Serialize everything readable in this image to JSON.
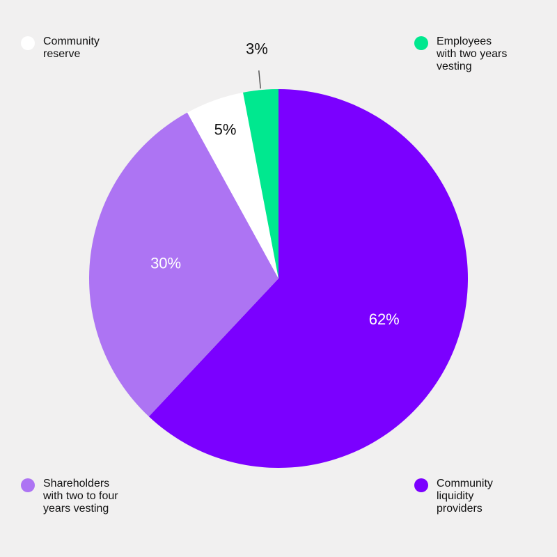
{
  "chart_data": {
    "type": "pie",
    "start_angle_deg": 0,
    "direction": "clockwise",
    "slices": [
      {
        "label": "Community liquidity providers",
        "value": 62,
        "value_label": "62%",
        "color": "#7b00ff",
        "label_color": "#ffffff"
      },
      {
        "label": "Shareholders with two to four years vesting",
        "value": 30,
        "value_label": "30%",
        "color": "#ad74f3",
        "label_color": "#ffffff"
      },
      {
        "label": "Community reserve",
        "value": 5,
        "value_label": "5%",
        "color": "#ffffff",
        "label_color": "#111111"
      },
      {
        "label": "Employees with two years vesting",
        "value": 3,
        "value_label": "3%",
        "color": "#00e88f",
        "label_color": "#111111"
      }
    ]
  },
  "legend": [
    {
      "text": "Community\nreserve",
      "color": "#ffffff"
    },
    {
      "text": "Employees\nwith two years\nvesting",
      "color": "#00e88f"
    },
    {
      "text": "Shareholders\nwith two to four\nyears vesting",
      "color": "#ad74f3"
    },
    {
      "text": "Community\nliquidity\nproviders",
      "color": "#7b00ff"
    }
  ]
}
